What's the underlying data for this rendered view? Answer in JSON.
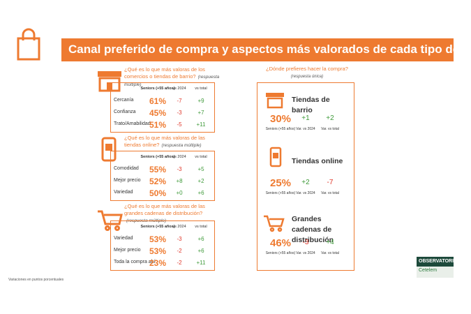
{
  "header": {
    "title": "Canal preferido de compra y aspectos más valorados de cada tipo de canal"
  },
  "left": {
    "sections": [
      {
        "question": "¿Qué es lo que más valoras de los comercios o tiendas de barrio?",
        "note": "(respuesta múltiple)",
        "columns": [
          "Seniors (+55 años)",
          "vs 2024",
          "vs total"
        ],
        "rows": [
          {
            "label": "Cercanía",
            "share": "61%",
            "vs_2024": "-7",
            "vs_total": "+9"
          },
          {
            "label": "Confianza",
            "share": "45%",
            "vs_2024": "-3",
            "vs_total": "+7"
          },
          {
            "label": "Trato/Amabilidad",
            "share": "51%",
            "vs_2024": "-5",
            "vs_total": "+11"
          }
        ]
      },
      {
        "question": "¿Qué es lo que más valoras de las tiendas online?",
        "note": "(respuesta múltiple)",
        "columns": [
          "Seniors (+55 años)",
          "vs 2024",
          "vs total"
        ],
        "rows": [
          {
            "label": "Comodidad",
            "share": "55%",
            "vs_2024": "-3",
            "vs_total": "+5"
          },
          {
            "label": "Mejor precio",
            "share": "52%",
            "vs_2024": "+8",
            "vs_total": "+2"
          },
          {
            "label": "Variedad",
            "share": "50%",
            "vs_2024": "+0",
            "vs_total": "+6"
          }
        ]
      },
      {
        "question": "¿Qué es lo que más valoras de las grandes cadenas de distribución?",
        "note": "(respuesta múltiple)",
        "columns": [
          "Seniors (+55 años)",
          "vs 2024",
          "vs total"
        ],
        "rows": [
          {
            "label": "Variedad",
            "share": "53%",
            "vs_2024": "-3",
            "vs_total": "+6"
          },
          {
            "label": "Mejor precio",
            "share": "53%",
            "vs_2024": "-2",
            "vs_total": "+6"
          },
          {
            "label": "Toda la compra ahí",
            "share": "23%",
            "vs_2024": "-2",
            "vs_total": "+11"
          }
        ]
      }
    ]
  },
  "right": {
    "question": "¿Dónde prefieres hacer la compra?",
    "note": "(respuesta única)",
    "channels": [
      {
        "name": "Tiendas de barrio",
        "share": "30%",
        "var_2024": "+1",
        "var_total": "+2",
        "labels": [
          "Seniors (+55 años)",
          "Var. vs 2024",
          "Var. vs total"
        ]
      },
      {
        "name": "Tiendas online",
        "share": "25%",
        "var_2024": "+2",
        "var_total": "-7",
        "labels": [
          "Seniors (+55 años)",
          "Var. vs 2024",
          "Var. vs total"
        ]
      },
      {
        "name": "Grandes cadenas de distribución",
        "share": "46%",
        "var_2024": "-3",
        "var_total": "+4",
        "labels": [
          "Seniors (+55 años)",
          "Var. vs 2024",
          "Var. vs total"
        ]
      }
    ]
  },
  "footer": {
    "note": "Variaciones en puntos porcentuales",
    "logo": {
      "line1": "OBSERVATORIO",
      "line2": "Cetelem"
    }
  }
}
